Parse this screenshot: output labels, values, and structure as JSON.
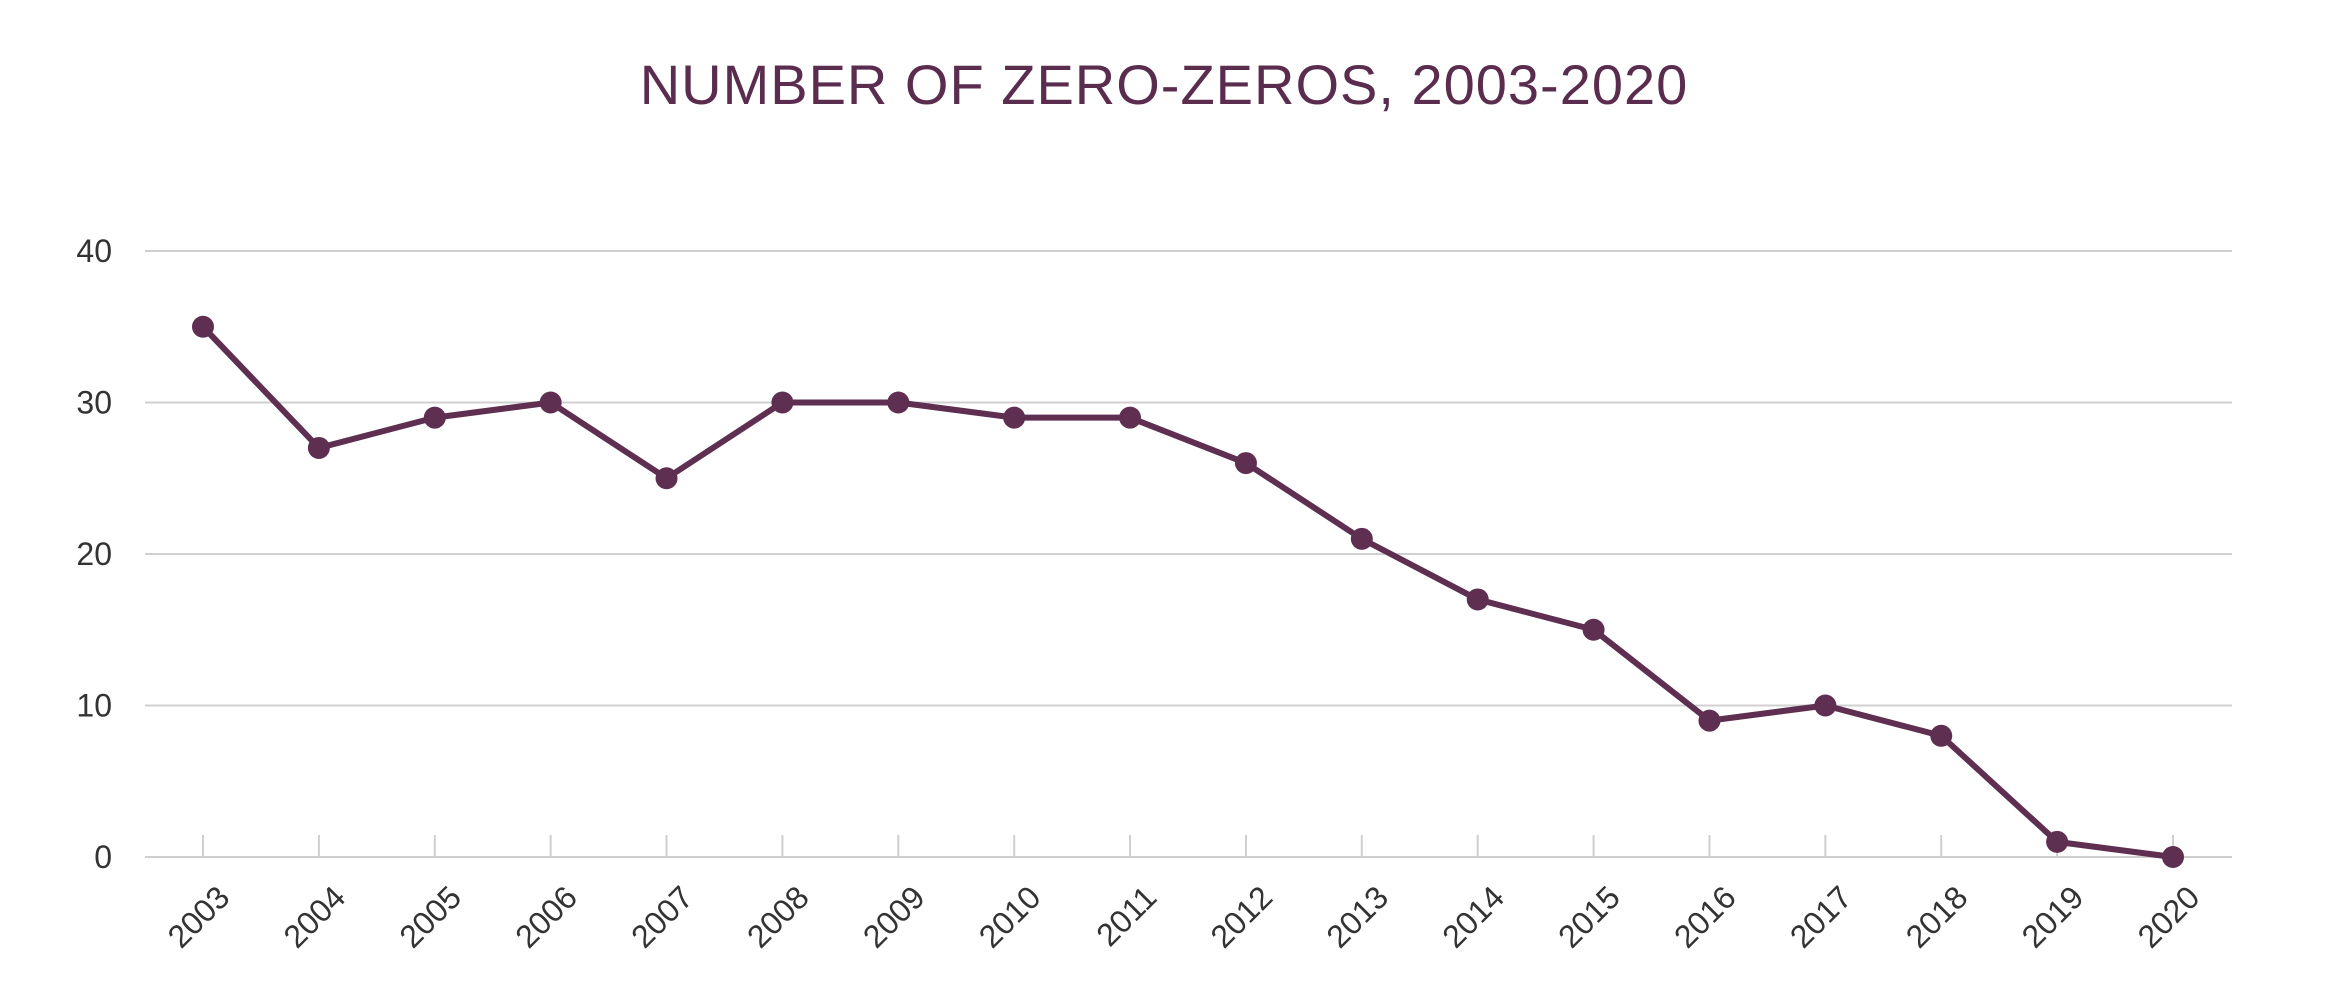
{
  "colors": {
    "series": "#5e2f51",
    "title": "#5a2d4f"
  },
  "chart_data": {
    "type": "line",
    "title": "NUMBER OF ZERO-ZEROS, 2003-2020",
    "xlabel": "",
    "ylabel": "",
    "x": [
      "2003",
      "2004",
      "2005",
      "2006",
      "2007",
      "2008",
      "2009",
      "2010",
      "2011",
      "2012",
      "2013",
      "2014",
      "2015",
      "2016",
      "2017",
      "2018",
      "2019",
      "2020"
    ],
    "values": [
      35,
      27,
      29,
      30,
      25,
      30,
      30,
      29,
      29,
      26,
      21,
      17,
      15,
      9,
      10,
      8,
      1,
      0
    ],
    "ylim": [
      0,
      40
    ],
    "yticks": [
      0,
      10,
      20,
      30,
      40
    ],
    "grid": true,
    "legend": "none",
    "markers": true
  }
}
